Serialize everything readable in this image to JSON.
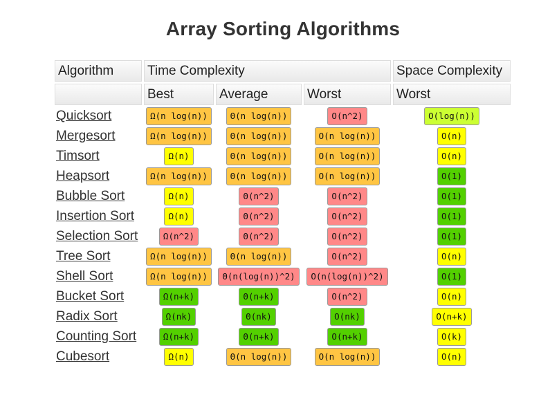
{
  "page": {
    "title": "Array Sorting Algorithms"
  },
  "headers": {
    "algorithm": "Algorithm",
    "time_complexity": "Time Complexity",
    "space_complexity": "Space Complexity",
    "best": "Best",
    "average": "Average",
    "worst": "Worst",
    "space_worst": "Worst"
  },
  "colors": {
    "bad": "#ff8888",
    "fair": "#ffc543",
    "good": "#ccff33",
    "excellent": "#53d000",
    "yellow": "#ffff00"
  },
  "rows": [
    {
      "name": "Quicksort",
      "best": {
        "v": "Ω(n log(n))",
        "c": "fair"
      },
      "avg": {
        "v": "Θ(n log(n))",
        "c": "fair"
      },
      "worst": {
        "v": "O(n^2)",
        "c": "bad"
      },
      "space": {
        "v": "O(log(n))",
        "c": "good"
      }
    },
    {
      "name": "Mergesort",
      "best": {
        "v": "Ω(n log(n))",
        "c": "fair"
      },
      "avg": {
        "v": "Θ(n log(n))",
        "c": "fair"
      },
      "worst": {
        "v": "O(n log(n))",
        "c": "fair"
      },
      "space": {
        "v": "O(n)",
        "c": "yellow"
      }
    },
    {
      "name": "Timsort",
      "best": {
        "v": "Ω(n)",
        "c": "yellow"
      },
      "avg": {
        "v": "Θ(n log(n))",
        "c": "fair"
      },
      "worst": {
        "v": "O(n log(n))",
        "c": "fair"
      },
      "space": {
        "v": "O(n)",
        "c": "yellow"
      }
    },
    {
      "name": "Heapsort",
      "best": {
        "v": "Ω(n log(n))",
        "c": "fair"
      },
      "avg": {
        "v": "Θ(n log(n))",
        "c": "fair"
      },
      "worst": {
        "v": "O(n log(n))",
        "c": "fair"
      },
      "space": {
        "v": "O(1)",
        "c": "excellent"
      }
    },
    {
      "name": "Bubble Sort",
      "best": {
        "v": "Ω(n)",
        "c": "yellow"
      },
      "avg": {
        "v": "Θ(n^2)",
        "c": "bad"
      },
      "worst": {
        "v": "O(n^2)",
        "c": "bad"
      },
      "space": {
        "v": "O(1)",
        "c": "excellent"
      }
    },
    {
      "name": "Insertion Sort",
      "best": {
        "v": "Ω(n)",
        "c": "yellow"
      },
      "avg": {
        "v": "Θ(n^2)",
        "c": "bad"
      },
      "worst": {
        "v": "O(n^2)",
        "c": "bad"
      },
      "space": {
        "v": "O(1)",
        "c": "excellent"
      }
    },
    {
      "name": "Selection Sort",
      "best": {
        "v": "Ω(n^2)",
        "c": "bad"
      },
      "avg": {
        "v": "Θ(n^2)",
        "c": "bad"
      },
      "worst": {
        "v": "O(n^2)",
        "c": "bad"
      },
      "space": {
        "v": "O(1)",
        "c": "excellent"
      }
    },
    {
      "name": "Tree Sort",
      "best": {
        "v": "Ω(n log(n))",
        "c": "fair"
      },
      "avg": {
        "v": "Θ(n log(n))",
        "c": "fair"
      },
      "worst": {
        "v": "O(n^2)",
        "c": "bad"
      },
      "space": {
        "v": "O(n)",
        "c": "yellow"
      }
    },
    {
      "name": "Shell Sort",
      "best": {
        "v": "Ω(n log(n))",
        "c": "fair"
      },
      "avg": {
        "v": "Θ(n(log(n))^2)",
        "c": "bad"
      },
      "worst": {
        "v": "O(n(log(n))^2)",
        "c": "bad"
      },
      "space": {
        "v": "O(1)",
        "c": "excellent"
      }
    },
    {
      "name": "Bucket Sort",
      "best": {
        "v": "Ω(n+k)",
        "c": "excellent"
      },
      "avg": {
        "v": "Θ(n+k)",
        "c": "excellent"
      },
      "worst": {
        "v": "O(n^2)",
        "c": "bad"
      },
      "space": {
        "v": "O(n)",
        "c": "yellow"
      }
    },
    {
      "name": "Radix Sort",
      "best": {
        "v": "Ω(nk)",
        "c": "excellent"
      },
      "avg": {
        "v": "Θ(nk)",
        "c": "excellent"
      },
      "worst": {
        "v": "O(nk)",
        "c": "excellent"
      },
      "space": {
        "v": "O(n+k)",
        "c": "yellow"
      }
    },
    {
      "name": "Counting Sort",
      "best": {
        "v": "Ω(n+k)",
        "c": "excellent"
      },
      "avg": {
        "v": "Θ(n+k)",
        "c": "excellent"
      },
      "worst": {
        "v": "O(n+k)",
        "c": "excellent"
      },
      "space": {
        "v": "O(k)",
        "c": "yellow"
      }
    },
    {
      "name": "Cubesort",
      "best": {
        "v": "Ω(n)",
        "c": "yellow"
      },
      "avg": {
        "v": "Θ(n log(n))",
        "c": "fair"
      },
      "worst": {
        "v": "O(n log(n))",
        "c": "fair"
      },
      "space": {
        "v": "O(n)",
        "c": "yellow"
      }
    }
  ]
}
